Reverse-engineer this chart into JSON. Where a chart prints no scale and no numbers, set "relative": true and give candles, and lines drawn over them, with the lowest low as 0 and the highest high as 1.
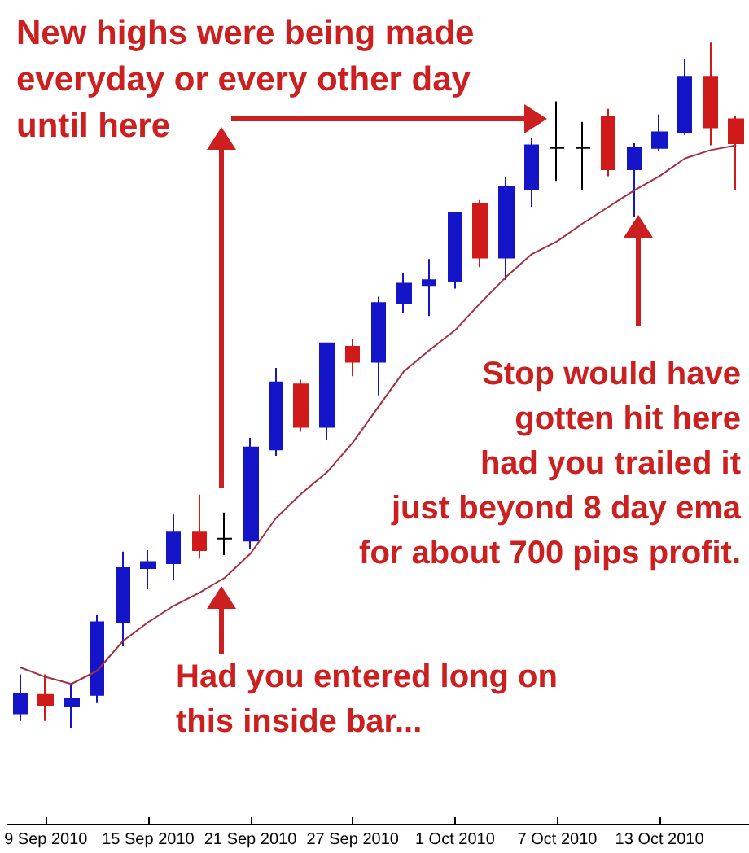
{
  "chart_data": {
    "type": "candlestick",
    "relative": true,
    "marker": "none",
    "categories": [
      null,
      "9 Sep 2010",
      null,
      null,
      null,
      "15 Sep 2010",
      null,
      null,
      null,
      "21 Sep 2010",
      null,
      null,
      null,
      "27 Sep 2010",
      null,
      null,
      null,
      "1 Oct 2010",
      null,
      null,
      null,
      "7 Oct 2010",
      null,
      null,
      null,
      "13 Oct 2010",
      null,
      null,
      null
    ],
    "ohlc": [
      [
        0.021,
        0.078,
        0.01,
        0.05
      ],
      [
        0.048,
        0.078,
        0.01,
        0.033
      ],
      [
        0.031,
        0.064,
        0.0,
        0.043
      ],
      [
        0.048,
        0.164,
        0.036,
        0.154
      ],
      [
        0.154,
        0.257,
        0.119,
        0.233
      ],
      [
        0.233,
        0.259,
        0.202,
        0.242
      ],
      [
        0.24,
        0.311,
        0.216,
        0.285
      ],
      [
        0.285,
        0.34,
        0.247,
        0.259
      ],
      [
        0.276,
        0.314,
        0.252,
        0.276
      ],
      [
        0.273,
        0.423,
        0.261,
        0.409
      ],
      [
        0.406,
        0.525,
        0.397,
        0.504
      ],
      [
        0.501,
        0.508,
        0.432,
        0.439
      ],
      [
        0.439,
        0.561,
        0.42,
        0.561
      ],
      [
        0.556,
        0.568,
        0.513,
        0.534
      ],
      [
        0.534,
        0.629,
        0.485,
        0.62
      ],
      [
        0.62,
        0.663,
        0.606,
        0.648
      ],
      [
        0.646,
        0.684,
        0.601,
        0.653
      ],
      [
        0.651,
        0.751,
        0.641,
        0.751
      ],
      [
        0.765,
        0.77,
        0.672,
        0.686
      ],
      [
        0.686,
        0.803,
        0.653,
        0.789
      ],
      [
        0.786,
        0.86,
        0.76,
        0.85
      ],
      [
        0.846,
        0.914,
        0.798,
        0.846
      ],
      [
        0.846,
        0.884,
        0.784,
        0.846
      ],
      [
        0.891,
        0.903,
        0.805,
        0.815
      ],
      [
        0.815,
        0.853,
        0.746,
        0.846
      ],
      [
        0.846,
        0.895,
        0.841,
        0.869
      ],
      [
        0.869,
        0.976,
        0.865,
        0.95
      ],
      [
        0.95,
        1,
        0.85,
        0.876
      ],
      [
        0.888,
        0.893,
        0.784,
        0.853
      ]
    ],
    "colors": [
      "#1414c8",
      "#d01a1a",
      "#1414c8",
      "#1414c8",
      "#1414c8",
      "#1414c8",
      "#1414c8",
      "#d01a1a",
      "#000000",
      "#1414c8",
      "#1414c8",
      "#d01a1a",
      "#1414c8",
      "#d01a1a",
      "#1414c8",
      "#1414c8",
      "#1414c8",
      "#1414c8",
      "#d01a1a",
      "#1414c8",
      "#1414c8",
      "#000000",
      "#000000",
      "#d01a1a",
      "#1414c8",
      "#1414c8",
      "#1414c8",
      "#d01a1a",
      "#d01a1a"
    ],
    "series": [
      {
        "type": "line",
        "color": "#a33040",
        "values": [
          0.088,
          0.074,
          0.064,
          0.083,
          0.126,
          0.154,
          0.178,
          0.197,
          0.219,
          0.254,
          0.306,
          0.342,
          0.373,
          0.416,
          0.468,
          0.52,
          0.551,
          0.58,
          0.62,
          0.658,
          0.691,
          0.71,
          0.736,
          0.76,
          0.784,
          0.805,
          0.831,
          0.843,
          0.85
        ]
      }
    ],
    "annotations": [
      "New highs were being made\neveryday or every other day\nuntil here",
      "Stop would have\ngotten hit here\nhad you trailed it\njust beyond 8 day ema\nfor about 700 pips profit.",
      "Had you entered long on\nthis inside bar..."
    ]
  }
}
